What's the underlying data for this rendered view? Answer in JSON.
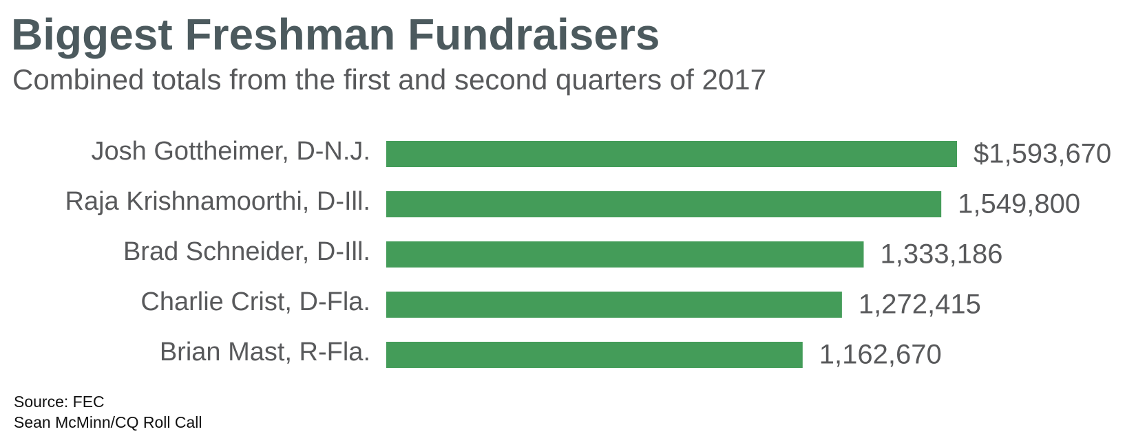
{
  "chart_data": {
    "type": "bar",
    "orientation": "horizontal",
    "title": "Biggest Freshman Fundraisers",
    "subtitle": "Combined totals from the first and second quarters of 2017",
    "categories": [
      "Josh Gottheimer, D-N.J.",
      "Raja Krishnamoorthi, D-Ill.",
      "Brad Schneider, D-Ill.",
      "Charlie Crist, D-Fla.",
      "Brian Mast, R-Fla."
    ],
    "values": [
      1593670,
      1549800,
      1333186,
      1272415,
      1162670
    ],
    "value_labels": [
      "$1,593,670",
      "1,549,800",
      "1,333,186",
      "1,272,415",
      "1,162,670"
    ],
    "color": "#449c59",
    "source": "Source: FEC",
    "credit": "Sean McMinn/CQ Roll Call"
  }
}
